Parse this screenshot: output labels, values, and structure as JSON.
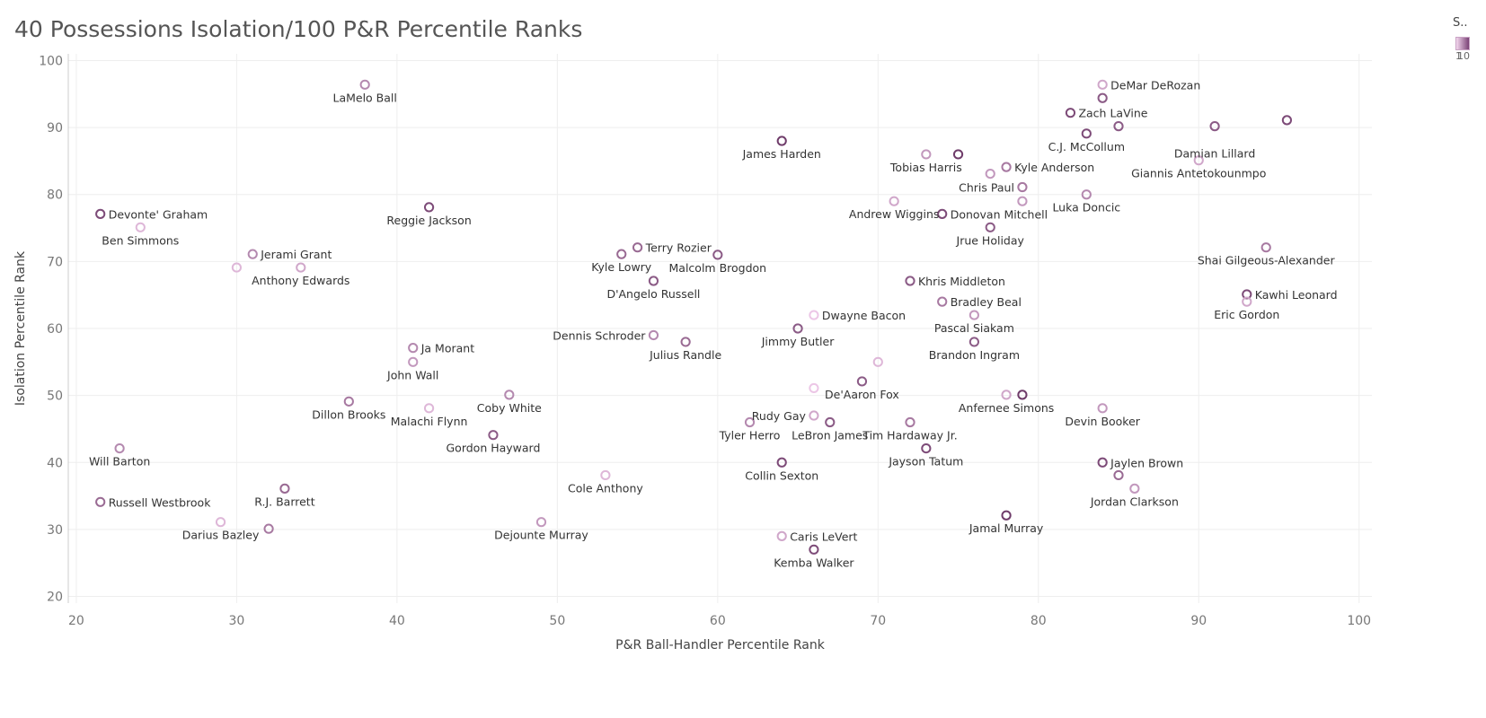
{
  "title": "40 Possessions Isolation/100 P&R Percentile Ranks",
  "legend": {
    "title": "S..",
    "min_label": "1",
    "max_label": "10"
  },
  "colors": {
    "low": "#ecc6e6",
    "high": "#6f3c6a",
    "grid": "#eeeeee",
    "axis": "#cccccc"
  },
  "chart_data": {
    "type": "scatter",
    "title": "40 Possessions Isolation/100 P&R Percentile Ranks",
    "xlabel": "P&R Ball-Handler Percentile Rank",
    "ylabel": "Isolation Percentile Rank",
    "xlim": [
      19.5,
      100.8
    ],
    "ylim": [
      19,
      101
    ],
    "xticks": [
      20,
      30,
      40,
      50,
      60,
      70,
      80,
      90,
      100
    ],
    "yticks": [
      20,
      30,
      40,
      50,
      60,
      70,
      80,
      90,
      100
    ],
    "grid": true,
    "points": [
      {
        "label": "LaMelo Ball",
        "x": 38,
        "y": 96.4,
        "s": 5,
        "pos": "below"
      },
      {
        "label": "DeMar DeRozan",
        "x": 84,
        "y": 96.4,
        "s": 3,
        "pos": "right"
      },
      {
        "label": "",
        "x": 84,
        "y": 94.4,
        "s": 8,
        "pos": "none"
      },
      {
        "label": "Zach LaVine",
        "x": 82,
        "y": 92.2,
        "s": 9,
        "pos": "right"
      },
      {
        "label": "",
        "x": 85,
        "y": 90.2,
        "s": 8,
        "pos": "none"
      },
      {
        "label": "",
        "x": 91,
        "y": 90.2,
        "s": 8,
        "pos": "none"
      },
      {
        "label": "",
        "x": 95.5,
        "y": 91.1,
        "s": 9,
        "pos": "none"
      },
      {
        "label": "C.J. McCollum",
        "x": 83,
        "y": 89.1,
        "s": 9,
        "pos": "below"
      },
      {
        "label": "Damian Lillard",
        "x": 91,
        "y": 88.1,
        "s": 0,
        "pos": "label-only"
      },
      {
        "label": "James Harden",
        "x": 64,
        "y": 88.0,
        "s": 10,
        "pos": "below"
      },
      {
        "label": "Tobias Harris",
        "x": 73,
        "y": 86.0,
        "s": 4,
        "pos": "below"
      },
      {
        "label": "",
        "x": 75,
        "y": 86.0,
        "s": 10,
        "pos": "none"
      },
      {
        "label": "Kyle Anderson",
        "x": 78,
        "y": 84.1,
        "s": 6,
        "pos": "right"
      },
      {
        "label": "",
        "x": 77,
        "y": 83.1,
        "s": 4,
        "pos": "none"
      },
      {
        "label": "Giannis Antetokounmpo",
        "x": 90,
        "y": 85.1,
        "s": 3,
        "pos": "below"
      },
      {
        "label": "Chris Paul",
        "x": 79,
        "y": 81.1,
        "s": 6,
        "pos": "left"
      },
      {
        "label": "Luka Doncic",
        "x": 83,
        "y": 80.0,
        "s": 5,
        "pos": "below"
      },
      {
        "label": "Andrew Wiggins",
        "x": 71,
        "y": 79.0,
        "s": 3,
        "pos": "below"
      },
      {
        "label": "",
        "x": 79,
        "y": 79.0,
        "s": 4,
        "pos": "none"
      },
      {
        "label": "Reggie Jackson",
        "x": 42,
        "y": 78.1,
        "s": 9,
        "pos": "below"
      },
      {
        "label": "Devonte' Graham",
        "x": 21.5,
        "y": 77.1,
        "s": 9,
        "pos": "right"
      },
      {
        "label": "Donovan Mitchell",
        "x": 74,
        "y": 77.1,
        "s": 9,
        "pos": "right"
      },
      {
        "label": "Ben Simmons",
        "x": 24,
        "y": 75.1,
        "s": 2,
        "pos": "below"
      },
      {
        "label": "Jrue Holiday",
        "x": 77,
        "y": 75.1,
        "s": 8,
        "pos": "below"
      },
      {
        "label": "Shai Gilgeous-Alexander",
        "x": 94.2,
        "y": 72.1,
        "s": 6,
        "pos": "below"
      },
      {
        "label": "Terry Rozier",
        "x": 55,
        "y": 72.1,
        "s": 7,
        "pos": "right"
      },
      {
        "label": "Jerami Grant",
        "x": 31,
        "y": 71.1,
        "s": 5,
        "pos": "right"
      },
      {
        "label": "Kyle Lowry",
        "x": 54,
        "y": 71.1,
        "s": 7,
        "pos": "below"
      },
      {
        "label": "Malcolm Brogdon",
        "x": 60,
        "y": 71.0,
        "s": 8,
        "pos": "below"
      },
      {
        "label": "",
        "x": 30,
        "y": 69.1,
        "s": 2,
        "pos": "none"
      },
      {
        "label": "Anthony Edwards",
        "x": 34,
        "y": 69.1,
        "s": 3,
        "pos": "below"
      },
      {
        "label": "D'Angelo Russell",
        "x": 56,
        "y": 67.1,
        "s": 8,
        "pos": "below"
      },
      {
        "label": "Khris Middleton",
        "x": 72,
        "y": 67.1,
        "s": 8,
        "pos": "right"
      },
      {
        "label": "Kawhi Leonard",
        "x": 93,
        "y": 65.1,
        "s": 9,
        "pos": "right"
      },
      {
        "label": "Eric Gordon",
        "x": 93,
        "y": 64.0,
        "s": 3,
        "pos": "below"
      },
      {
        "label": "Bradley Beal",
        "x": 74,
        "y": 64.0,
        "s": 6,
        "pos": "right"
      },
      {
        "label": "Dwayne Bacon",
        "x": 66,
        "y": 62.0,
        "s": 1,
        "pos": "right"
      },
      {
        "label": "Pascal Siakam",
        "x": 76,
        "y": 62.0,
        "s": 4,
        "pos": "below"
      },
      {
        "label": "Jimmy Butler",
        "x": 65,
        "y": 60.0,
        "s": 8,
        "pos": "below"
      },
      {
        "label": "Dennis Schroder",
        "x": 56,
        "y": 59.0,
        "s": 5,
        "pos": "left"
      },
      {
        "label": "Julius Randle",
        "x": 58,
        "y": 58.0,
        "s": 7,
        "pos": "below"
      },
      {
        "label": "Brandon Ingram",
        "x": 76,
        "y": 58.0,
        "s": 8,
        "pos": "below"
      },
      {
        "label": "Ja Morant",
        "x": 41,
        "y": 57.1,
        "s": 5,
        "pos": "right"
      },
      {
        "label": "John Wall",
        "x": 41,
        "y": 55.0,
        "s": 4,
        "pos": "below"
      },
      {
        "label": "",
        "x": 70,
        "y": 55.0,
        "s": 2,
        "pos": "none"
      },
      {
        "label": "De'Aaron Fox",
        "x": 69,
        "y": 52.1,
        "s": 8,
        "pos": "below"
      },
      {
        "label": "",
        "x": 66,
        "y": 51.1,
        "s": 1,
        "pos": "none"
      },
      {
        "label": "Coby White",
        "x": 47,
        "y": 50.1,
        "s": 5,
        "pos": "below"
      },
      {
        "label": "Anfernee Simons",
        "x": 78,
        "y": 50.1,
        "s": 3,
        "pos": "below"
      },
      {
        "label": "",
        "x": 79,
        "y": 50.1,
        "s": 10,
        "pos": "none"
      },
      {
        "label": "Dillon Brooks",
        "x": 37,
        "y": 49.1,
        "s": 6,
        "pos": "below"
      },
      {
        "label": "Malachi Flynn",
        "x": 42,
        "y": 48.1,
        "s": 2,
        "pos": "below"
      },
      {
        "label": "Devin Booker",
        "x": 84,
        "y": 48.1,
        "s": 4,
        "pos": "below"
      },
      {
        "label": "Rudy Gay",
        "x": 66,
        "y": 47.0,
        "s": 3,
        "pos": "left"
      },
      {
        "label": "Tyler Herro",
        "x": 62,
        "y": 46.0,
        "s": 5,
        "pos": "below"
      },
      {
        "label": "LeBron James",
        "x": 67,
        "y": 46.0,
        "s": 8,
        "pos": "below"
      },
      {
        "label": "Tim Hardaway Jr.",
        "x": 72,
        "y": 46.0,
        "s": 6,
        "pos": "below"
      },
      {
        "label": "Gordon Hayward",
        "x": 46,
        "y": 44.1,
        "s": 8,
        "pos": "below"
      },
      {
        "label": "Will Barton",
        "x": 22.7,
        "y": 42.1,
        "s": 5,
        "pos": "below"
      },
      {
        "label": "Jayson Tatum",
        "x": 73,
        "y": 42.1,
        "s": 9,
        "pos": "below"
      },
      {
        "label": "Collin Sexton",
        "x": 64,
        "y": 40.0,
        "s": 9,
        "pos": "below"
      },
      {
        "label": "Jaylen Brown",
        "x": 84,
        "y": 40.0,
        "s": 9,
        "pos": "right"
      },
      {
        "label": "Cole Anthony",
        "x": 53,
        "y": 38.1,
        "s": 2,
        "pos": "below"
      },
      {
        "label": "",
        "x": 85,
        "y": 38.1,
        "s": 7,
        "pos": "none"
      },
      {
        "label": "R.J. Barrett",
        "x": 33,
        "y": 36.1,
        "s": 7,
        "pos": "below"
      },
      {
        "label": "Jordan Clarkson",
        "x": 86,
        "y": 36.1,
        "s": 4,
        "pos": "below"
      },
      {
        "label": "Russell Westbrook",
        "x": 21.5,
        "y": 34.1,
        "s": 7,
        "pos": "right"
      },
      {
        "label": "Jamal Murray",
        "x": 78,
        "y": 32.1,
        "s": 10,
        "pos": "below"
      },
      {
        "label": "Darius Bazley",
        "x": 29,
        "y": 31.1,
        "s": 2,
        "pos": "below"
      },
      {
        "label": "Dejounte Murray",
        "x": 49,
        "y": 31.1,
        "s": 4,
        "pos": "below"
      },
      {
        "label": "",
        "x": 32,
        "y": 30.1,
        "s": 6,
        "pos": "none"
      },
      {
        "label": "Caris LeVert",
        "x": 64,
        "y": 29.0,
        "s": 3,
        "pos": "right"
      },
      {
        "label": "Kemba Walker",
        "x": 66,
        "y": 27.0,
        "s": 9,
        "pos": "below"
      }
    ]
  }
}
